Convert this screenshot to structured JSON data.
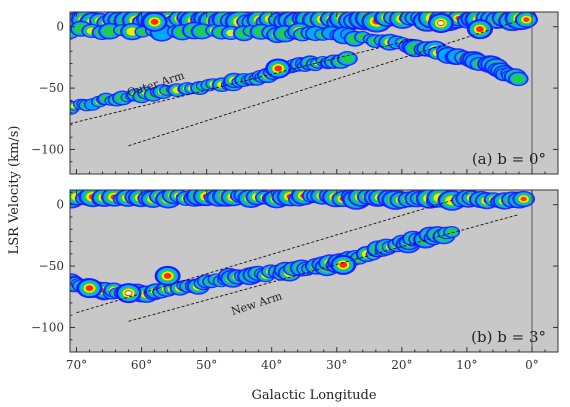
{
  "chart_data": [
    {
      "type": "heatmap",
      "panel_label": "(a)  b = 0°",
      "xlabel": "Galactic Longitude",
      "ylabel": "LSR Velocity (km/s)",
      "xlim": [
        71,
        -4
      ],
      "ylim": [
        -120,
        12
      ],
      "x_ticks": [
        70,
        60,
        50,
        40,
        30,
        20,
        10,
        0
      ],
      "y_ticks": [
        0,
        -50,
        -100
      ],
      "annotation": {
        "text": "Outer Arm",
        "l": 62,
        "v": -57,
        "angle_deg": -18
      },
      "guide_lines": [
        {
          "from": [
            71,
            -79
          ],
          "to": [
            18,
            -10
          ]
        },
        {
          "from": [
            62,
            -97
          ],
          "to": [
            2,
            5
          ]
        }
      ],
      "emission_bands": [
        {
          "name": "local",
          "points": [
            [
              71,
              4
            ],
            [
              60,
              5
            ],
            [
              50,
              6
            ],
            [
              40,
              5
            ],
            [
              30,
              5
            ],
            [
              20,
              6
            ],
            [
              10,
              6
            ],
            [
              0,
              6
            ]
          ],
          "width": 9,
          "intensity": 1.0
        },
        {
          "name": "inner",
          "points": [
            [
              71,
              -3
            ],
            [
              55,
              -4
            ],
            [
              40,
              -5
            ],
            [
              30,
              -6
            ],
            [
              20,
              -14
            ],
            [
              12,
              -24
            ],
            [
              6,
              -32
            ],
            [
              2,
              -44
            ]
          ],
          "width": 7,
          "intensity": 0.55
        },
        {
          "name": "outer-arm",
          "points": [
            [
              71,
              -66
            ],
            [
              64,
              -58
            ],
            [
              56,
              -53
            ],
            [
              48,
              -47
            ],
            [
              42,
              -42
            ],
            [
              38,
              -33
            ],
            [
              34,
              -30
            ],
            [
              28,
              -26
            ]
          ],
          "width": 6,
          "intensity": 0.62
        }
      ],
      "hot_spots": [
        {
          "l": 14,
          "v": 3,
          "intensity": 1.0
        },
        {
          "l": 8,
          "v": -2,
          "intensity": 0.95
        },
        {
          "l": 39,
          "v": -34,
          "intensity": 0.9
        },
        {
          "l": 58,
          "v": 4,
          "intensity": 0.95
        }
      ],
      "colormap": [
        "#c8c8c8",
        "#1a1aff",
        "#00b0ff",
        "#22cc44",
        "#ffee00",
        "#ff2a00",
        "#ffffff"
      ]
    },
    {
      "type": "heatmap",
      "panel_label": "(b)  b = 3°",
      "xlabel": "Galactic Longitude",
      "ylabel": "LSR Velocity (km/s)",
      "xlim": [
        71,
        -4
      ],
      "ylim": [
        -120,
        12
      ],
      "x_ticks": [
        70,
        60,
        50,
        40,
        30,
        20,
        10,
        0
      ],
      "x_tick_labels": [
        "70°",
        "60°",
        "50°",
        "40°",
        "30°",
        "20°",
        "10°",
        "0°"
      ],
      "y_ticks": [
        0,
        -50,
        -100
      ],
      "annotation": {
        "text": "New Arm",
        "l": 46,
        "v": -90,
        "angle_deg": -18
      },
      "guide_lines": [
        {
          "from": [
            70,
            -88
          ],
          "to": [
            12,
            4
          ]
        },
        {
          "from": [
            62,
            -95
          ],
          "to": [
            2,
            -8
          ]
        }
      ],
      "emission_bands": [
        {
          "name": "local",
          "points": [
            [
              71,
              5
            ],
            [
              60,
              6
            ],
            [
              50,
              6
            ],
            [
              40,
              6
            ],
            [
              30,
              6
            ],
            [
              20,
              5
            ],
            [
              10,
              4
            ],
            [
              0,
              3
            ]
          ],
          "width": 8,
          "intensity": 1.0
        },
        {
          "name": "new-arm",
          "points": [
            [
              71,
              -62
            ],
            [
              66,
              -70
            ],
            [
              60,
              -72
            ],
            [
              52,
              -66
            ],
            [
              45,
              -58
            ],
            [
              38,
              -55
            ],
            [
              30,
              -48
            ],
            [
              24,
              -38
            ],
            [
              18,
              -29
            ],
            [
              12,
              -22
            ]
          ],
          "width": 7,
          "intensity": 0.72
        }
      ],
      "hot_spots": [
        {
          "l": 62,
          "v": -72,
          "intensity": 1.0
        },
        {
          "l": 68,
          "v": -68,
          "intensity": 0.9
        },
        {
          "l": 56,
          "v": -58,
          "intensity": 0.85
        },
        {
          "l": 29,
          "v": -49,
          "intensity": 0.8
        }
      ],
      "colormap": [
        "#c8c8c8",
        "#1a1aff",
        "#00b0ff",
        "#22cc44",
        "#ffee00",
        "#ff2a00",
        "#ffffff"
      ]
    }
  ],
  "arm_labels": {
    "outer_arm": "Outer Arm",
    "new_arm": "New Arm"
  },
  "axis_titles": {
    "x": "Galactic Longitude",
    "y": "LSR Velocity (km/s)"
  }
}
